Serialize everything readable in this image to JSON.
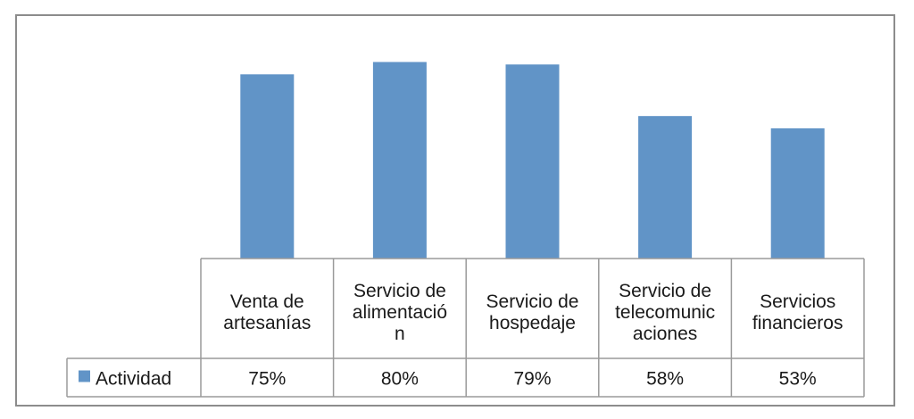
{
  "chart_data": {
    "type": "bar",
    "categories": [
      "Venta de artesanías",
      "Servicio de alimentación",
      "Servicio de hospedaje",
      "Servicio de telecomunicaciones",
      "Servicios financieros"
    ],
    "category_label_lines": [
      [
        "Venta de",
        "artesanías"
      ],
      [
        "Servicio de",
        "alimentació",
        "n"
      ],
      [
        "Servicio de",
        "hospedaje"
      ],
      [
        "Servicio de",
        "telecomunic",
        "aciones"
      ],
      [
        "Servicios",
        "financieros"
      ]
    ],
    "series": [
      {
        "name": "Actividad",
        "values": [
          75,
          80,
          79,
          58,
          53
        ]
      }
    ],
    "value_labels": [
      "75%",
      "80%",
      "79%",
      "58%",
      "53%"
    ],
    "ylim": [
      0,
      90
    ],
    "title": "",
    "xlabel": "",
    "ylabel": "",
    "grid": false,
    "legend": "data-table",
    "bar_color": "#6194C7"
  }
}
